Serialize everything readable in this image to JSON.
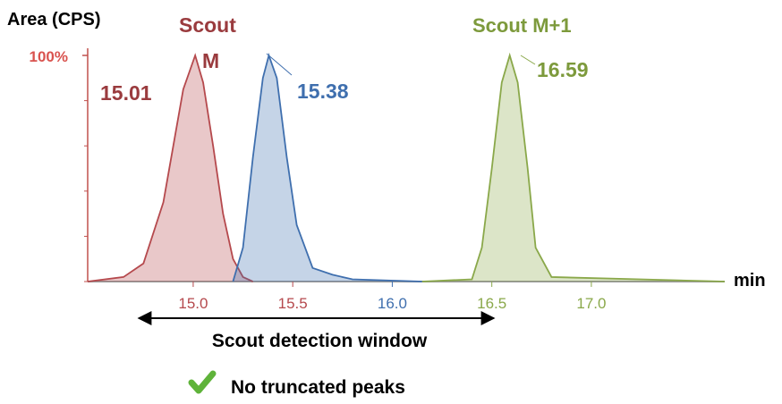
{
  "chart_data": {
    "type": "area",
    "y_label": "Area (CPS)",
    "x_label": "min",
    "xlim": [
      14.47,
      17.67
    ],
    "ylim": [
      0,
      100
    ],
    "xticks": [
      {
        "value": 15,
        "label": "15.0"
      },
      {
        "value": 15.5,
        "label": "15.5"
      },
      {
        "value": 16,
        "label": "16.0"
      },
      {
        "value": 16.5,
        "label": "16.5"
      },
      {
        "value": 17,
        "label": "17.0"
      }
    ],
    "yticks": [
      {
        "value": 100,
        "label": "100%"
      }
    ],
    "series": [
      {
        "color": "#b5494d",
        "x": [
          14.47,
          14.65,
          14.75,
          14.85,
          14.9,
          14.95,
          15.01,
          15.05,
          15.1,
          15.15,
          15.2,
          15.25,
          15.3
        ],
        "values": [
          0,
          2,
          8,
          35,
          60,
          85,
          100,
          88,
          60,
          30,
          10,
          2,
          0
        ]
      },
      {
        "color": "#3f6fae",
        "x": [
          15.2,
          15.25,
          15.3,
          15.35,
          15.38,
          15.42,
          15.47,
          15.52,
          15.6,
          15.7,
          15.8,
          16.15
        ],
        "values": [
          0,
          15,
          55,
          90,
          100,
          90,
          55,
          25,
          6,
          3,
          1,
          0
        ]
      },
      {
        "color": "#8aa84a",
        "x": [
          16.15,
          16.4,
          16.45,
          16.5,
          16.55,
          16.59,
          16.63,
          16.68,
          16.72,
          16.8,
          17.67
        ],
        "values": [
          0,
          1,
          15,
          50,
          88,
          100,
          88,
          50,
          15,
          2,
          0
        ]
      }
    ],
    "annotations": [
      "Scout",
      "M",
      "15.01",
      "15.38",
      "Scout M+1",
      "16.59"
    ],
    "window_label": "Scout detection window",
    "note": "No truncated peaks"
  }
}
